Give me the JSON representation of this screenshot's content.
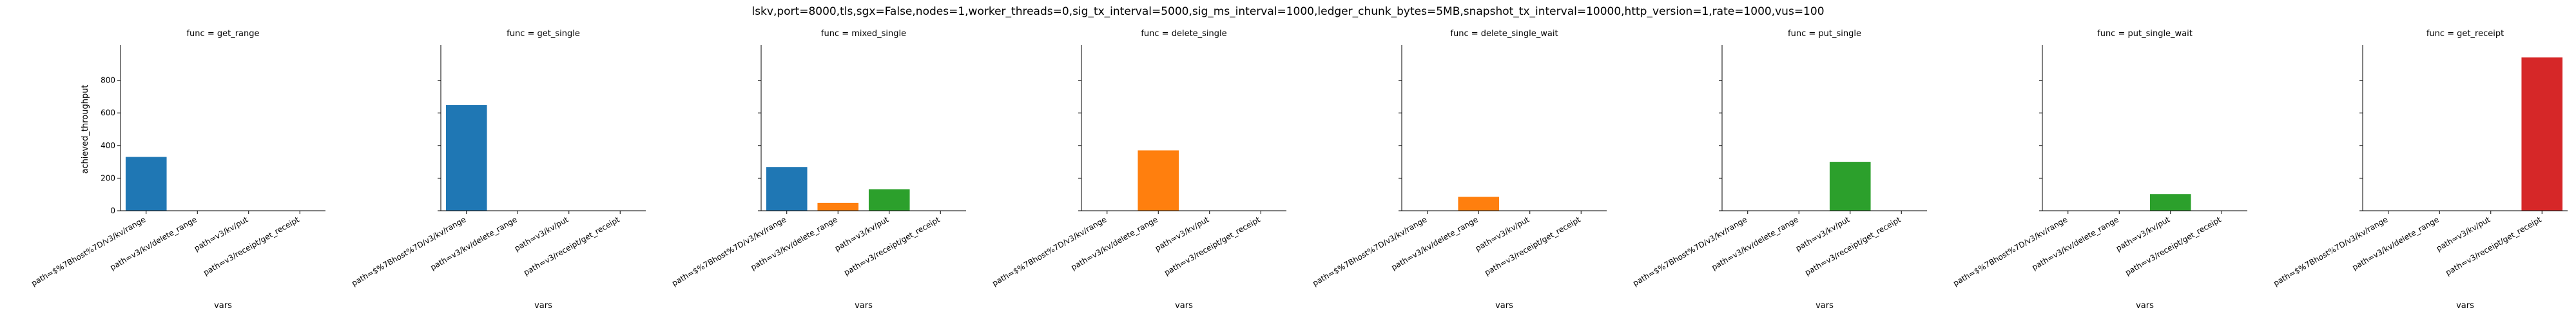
{
  "suptitle": "lskv,port=8000,tls,sgx=False,nodes=1,worker_threads=0,sig_tx_interval=5000,sig_ms_interval=1000,ledger_chunk_bytes=5MB,snapshot_tx_interval=10000,http_version=1,rate=1000,vus=100",
  "chart_data": {
    "type": "bar",
    "xlabel": "vars",
    "ylabel": "achieved_throughput",
    "ylim": [
      0,
      1000
    ],
    "yticks": [
      0,
      200,
      400,
      600,
      800
    ],
    "grid": false,
    "legend": "none",
    "categories": [
      "path=$%7Bhost%7D/v3/kv/range",
      "path=v3/kv/delete_range",
      "path=v3/kv/put",
      "path=v3/receipt/get_receipt"
    ],
    "panels": [
      {
        "title": "func = get_range",
        "color": "#1f77b4",
        "values": [
          330,
          null,
          null,
          null
        ]
      },
      {
        "title": "func = get_single",
        "color": "#1f77b4",
        "values": [
          648,
          null,
          null,
          null
        ]
      },
      {
        "title": "func = mixed_single",
        "color": "mixed",
        "values": [
          268,
          48,
          132,
          null
        ]
      },
      {
        "title": "func = delete_single",
        "color": "#ff7f0e",
        "values": [
          null,
          370,
          null,
          null
        ]
      },
      {
        "title": "func = delete_single_wait",
        "color": "#ff7f0e",
        "values": [
          null,
          85,
          null,
          null
        ]
      },
      {
        "title": "func = put_single",
        "color": "#2ca02c",
        "values": [
          null,
          null,
          300,
          null
        ]
      },
      {
        "title": "func = put_single_wait",
        "color": "#2ca02c",
        "values": [
          null,
          null,
          102,
          null
        ]
      },
      {
        "title": "func = get_receipt",
        "color": "#d62728",
        "values": [
          null,
          null,
          null,
          940
        ]
      }
    ],
    "series_colors": {
      "path=$%7Bhost%7D/v3/kv/range": "#1f77b4",
      "path=v3/kv/delete_range": "#ff7f0e",
      "path=v3/kv/put": "#2ca02c",
      "path=v3/receipt/get_receipt": "#d62728"
    }
  }
}
